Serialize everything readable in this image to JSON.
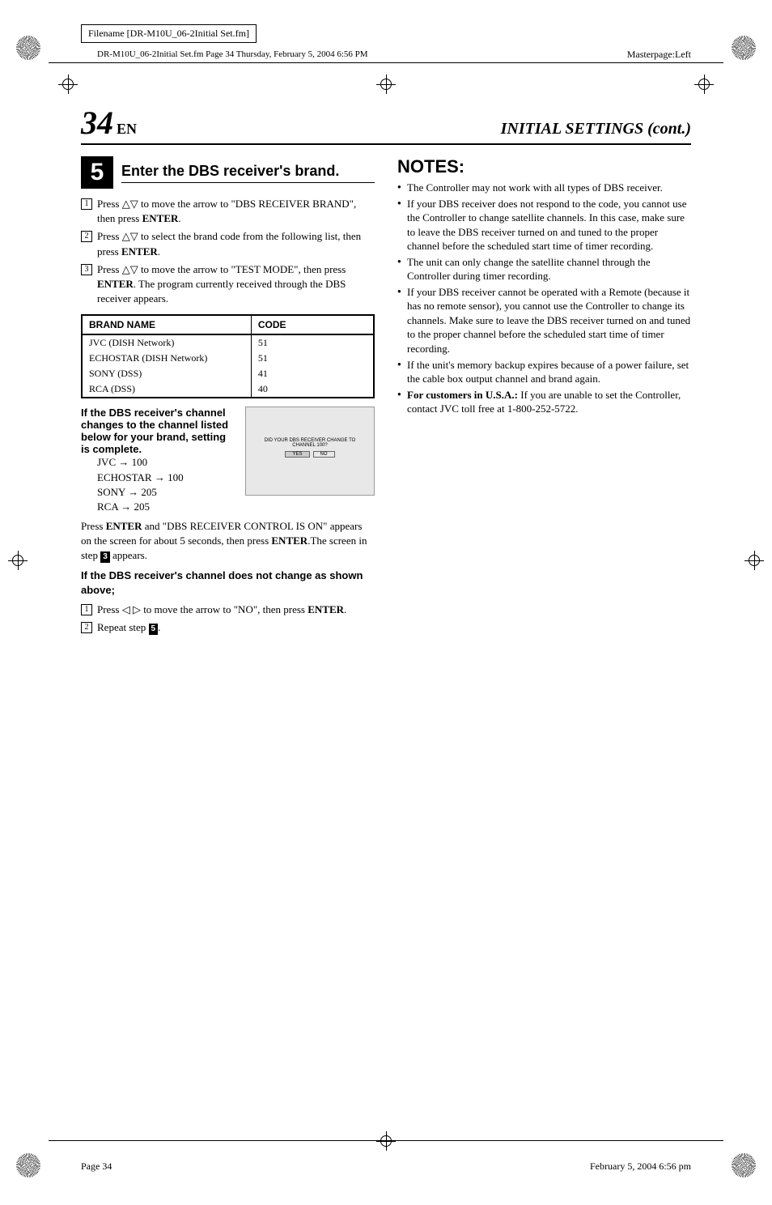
{
  "meta": {
    "filename_label": "Filename [DR-M10U_06-2Initial Set.fm]",
    "header_meta": "DR-M10U_06-2Initial Set.fm  Page 34  Thursday, February 5, 2004  6:56 PM",
    "masterpage": "Masterpage:Left"
  },
  "header": {
    "page_num": "34",
    "en": "EN",
    "title_right": "INITIAL SETTINGS (cont.)"
  },
  "step": {
    "num": "5",
    "title": "Enter the DBS receiver's brand.",
    "sub1": "Press △▽ to move the arrow to \"DBS RECEIVER BRAND\", then press ",
    "sub1_b": "ENTER",
    "sub1_end": ".",
    "sub2": "Press △▽ to select the brand code from the following list, then press ",
    "sub2_b": "ENTER",
    "sub2_end": ".",
    "sub3": "Press △▽ to move the arrow to \"TEST MODE\", then press ",
    "sub3_b": "ENTER",
    "sub3_end": ". The program currently received through the DBS receiver appears."
  },
  "table": {
    "h1": "BRAND NAME",
    "h2": "CODE",
    "rows": [
      {
        "name": "JVC (DISH Network)",
        "code": "51"
      },
      {
        "name": "ECHOSTAR (DISH Network)",
        "code": "51"
      },
      {
        "name": "SONY (DSS)",
        "code": "41"
      },
      {
        "name": "RCA (DSS)",
        "code": "40"
      }
    ]
  },
  "desc": {
    "bold_line": "If the DBS receiver's channel changes to the channel listed below for your brand, setting is complete.",
    "channels": [
      {
        "brand": "JVC",
        "ch": "100"
      },
      {
        "brand": "ECHOSTAR",
        "ch": "100"
      },
      {
        "brand": "SONY",
        "ch": "205"
      },
      {
        "brand": "RCA",
        "ch": "205"
      }
    ],
    "press_enter_1": "Press ",
    "press_enter_b1": "ENTER",
    "press_enter_2": " and \"DBS RECEIVER CONTROL IS ON\" appears on the screen for about 5 seconds, then press ",
    "press_enter_b2": "ENTER",
    "press_enter_3": ".The screen in step ",
    "step_ref1": "3",
    "press_enter_4": " appears.",
    "fail_bold": "If the DBS receiver's channel does not change as shown above;",
    "fail_sub1": "Press ◁ ▷ to move the arrow to \"NO\", then press ",
    "fail_sub1_b": "ENTER",
    "fail_sub1_end": ".",
    "fail_sub2": "Repeat step ",
    "step_ref2": "5",
    "fail_sub2_end": "."
  },
  "screen": {
    "line1": "DID YOUR DBS RECEIVER CHANGE TO",
    "line2": "CHANNEL 100?",
    "yes": "YES",
    "no": "NO"
  },
  "notes": {
    "title": "NOTES:",
    "items": [
      "The Controller may not work with all types of DBS receiver.",
      "If your DBS receiver does not respond to the code, you cannot use the Controller to change satellite channels. In this case, make sure to leave the DBS receiver turned on and tuned to the proper channel before the scheduled start time of timer recording.",
      "The unit can only change the satellite channel through the Controller during timer recording.",
      "If your DBS receiver cannot be operated with a Remote (because it has no remote sensor), you cannot use the Controller to change its channels. Make sure to leave the DBS receiver turned on and tuned to the proper channel before the scheduled start time of timer recording.",
      "If the unit's memory backup expires because of a power failure, set the cable box output channel and brand again."
    ],
    "last_bold": "For customers in U.S.A.:",
    "last_text": " If you are unable to set the Controller, contact JVC toll free at 1-800-252-5722."
  },
  "footer": {
    "left": "Page 34",
    "right": "February 5, 2004 6:56 pm"
  }
}
